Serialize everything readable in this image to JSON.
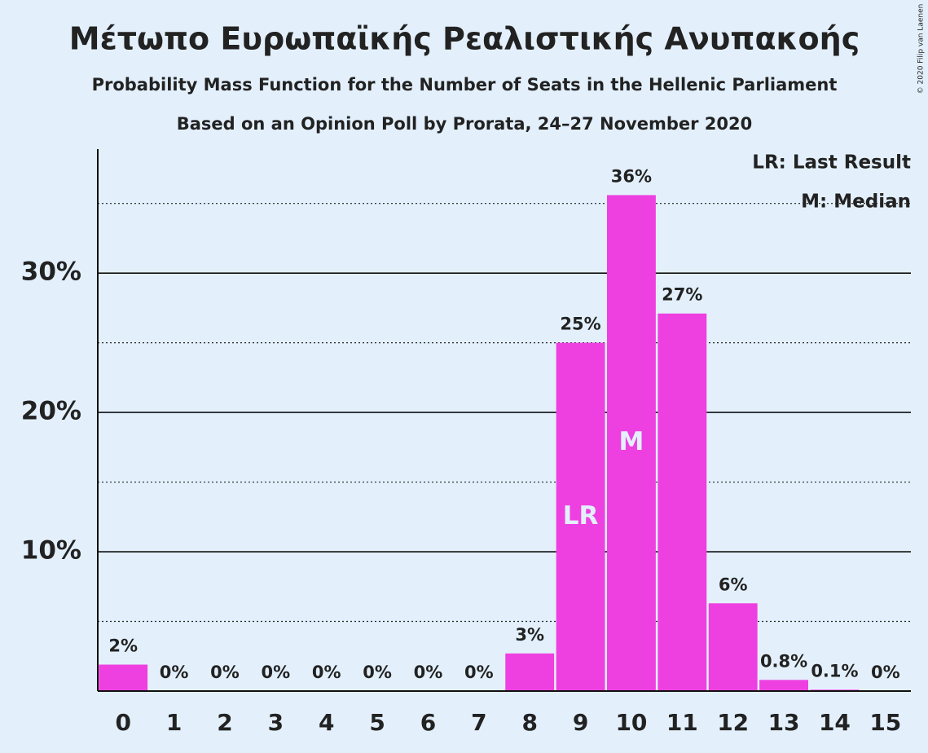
{
  "chart_data": {
    "type": "bar",
    "title": "Μέτωπο Ευρωπαϊκής Ρεαλιστικής Ανυπακοής",
    "subtitle": "Probability Mass Function for the Number of Seats in the Hellenic Parliament",
    "subtitle2": "Based on an Opinion Poll by Prorata, 24–27 November 2020",
    "copyright": "© 2020 Filip van Laenen",
    "categories": [
      "0",
      "1",
      "2",
      "3",
      "4",
      "5",
      "6",
      "7",
      "8",
      "9",
      "10",
      "11",
      "12",
      "13",
      "14",
      "15"
    ],
    "values": [
      1.9,
      0,
      0,
      0,
      0,
      0,
      0,
      0,
      2.7,
      25.0,
      35.6,
      27.1,
      6.3,
      0.8,
      0.1,
      0
    ],
    "value_labels": [
      "2%",
      "0%",
      "0%",
      "0%",
      "0%",
      "0%",
      "0%",
      "0%",
      "3%",
      "25%",
      "36%",
      "27%",
      "6%",
      "0.8%",
      "0.1%",
      "0%"
    ],
    "color": "#ee40e0",
    "ylim": [
      0,
      38.9
    ],
    "yticks": [
      {
        "value": 10,
        "label": "10%"
      },
      {
        "value": 20,
        "label": "20%"
      },
      {
        "value": 30,
        "label": "30%"
      }
    ],
    "minor_yticks": [
      5,
      15,
      25,
      35
    ],
    "grid": true,
    "annotations": [
      {
        "text": "LR",
        "x": 9
      },
      {
        "text": "M",
        "x": 10
      }
    ],
    "legend": [
      "LR: Last Result",
      "M: Median"
    ],
    "legend_position": "upper right"
  }
}
